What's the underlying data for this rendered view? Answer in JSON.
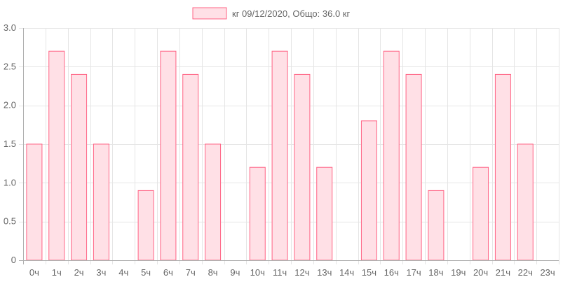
{
  "colors": {
    "bar_fill": "#ffe0e6",
    "bar_stroke": "#ff6384",
    "grid": "#e5e5e5",
    "axis": "#b0b0b0",
    "text": "#666666"
  },
  "chart_data": {
    "type": "bar",
    "title": "",
    "xlabel": "",
    "ylabel": "",
    "ylim": [
      0,
      3.0
    ],
    "y_ticks": [
      "0",
      "0.5",
      "1.0",
      "1.5",
      "2.0",
      "2.5",
      "3.0"
    ],
    "grid": true,
    "legend_position": "top-center",
    "categories": [
      "0ч",
      "1ч",
      "2ч",
      "3ч",
      "4ч",
      "5ч",
      "6ч",
      "7ч",
      "8ч",
      "9ч",
      "10ч",
      "11ч",
      "12ч",
      "13ч",
      "14ч",
      "15ч",
      "16ч",
      "17ч",
      "18ч",
      "19ч",
      "20ч",
      "21ч",
      "22ч",
      "23ч"
    ],
    "series": [
      {
        "name": "кг 09/12/2020, Общо: 36.0 кг",
        "values": [
          1.5,
          2.7,
          2.4,
          1.5,
          0,
          0.9,
          2.7,
          2.4,
          1.5,
          0,
          1.2,
          2.7,
          2.4,
          1.2,
          0,
          1.8,
          2.7,
          2.4,
          0.9,
          0,
          1.2,
          2.4,
          1.5,
          0
        ]
      }
    ]
  }
}
